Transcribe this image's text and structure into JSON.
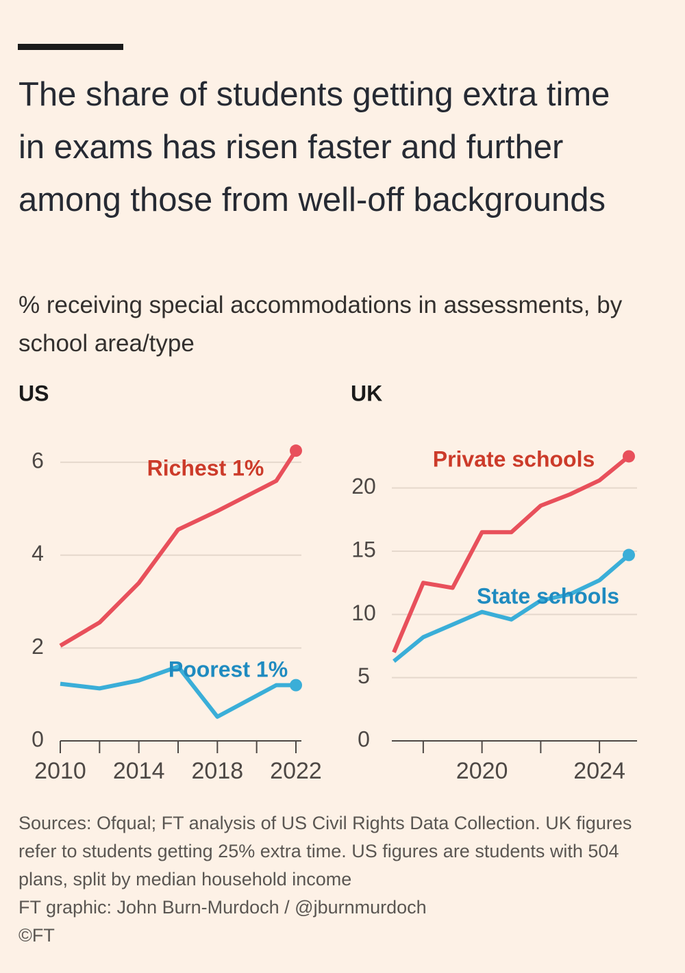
{
  "title": "The share of students getting extra time in exams has risen faster and further among those from well-off backgrounds",
  "subtitle": "% receiving special accommodations in assessments, by school area/type",
  "chart_data": [
    {
      "type": "line",
      "title": "US",
      "x": [
        2010,
        2012,
        2014,
        2016,
        2018,
        2021,
        2022
      ],
      "xlim": [
        2010,
        2022
      ],
      "xticks": [
        2010,
        2014,
        2018,
        2022
      ],
      "xminor_ticks": [
        2012,
        2016,
        2020
      ],
      "ylim": [
        0,
        6.4
      ],
      "yticks": [
        0,
        2,
        4,
        6
      ],
      "grid": true,
      "series": [
        {
          "name": "Richest 1%",
          "color": "#e8505b",
          "label_color": "#cc3b2a",
          "values": [
            2.05,
            2.55,
            3.4,
            4.55,
            4.95,
            5.6,
            6.25
          ]
        },
        {
          "name": "Poorest 1%",
          "color": "#3aaed8",
          "label_color": "#1f8bc0",
          "values": [
            1.23,
            1.13,
            1.3,
            1.6,
            0.52,
            1.2,
            1.2
          ]
        }
      ]
    },
    {
      "type": "line",
      "title": "UK",
      "x": [
        2017,
        2018,
        2019,
        2020,
        2021,
        2022,
        2023,
        2024,
        2025
      ],
      "xlim": [
        2017,
        2025
      ],
      "xticks": [
        2020,
        2024
      ],
      "xminor_ticks": [
        2018,
        2022
      ],
      "ylim": [
        0,
        23.5
      ],
      "yticks": [
        0,
        5,
        10,
        15,
        20
      ],
      "grid": true,
      "series": [
        {
          "name": "Private schools",
          "color": "#e8505b",
          "label_color": "#cc3b2a",
          "values": [
            7.0,
            12.5,
            12.1,
            16.5,
            16.5,
            18.6,
            19.5,
            20.6,
            22.5
          ]
        },
        {
          "name": "State schools",
          "color": "#3aaed8",
          "label_color": "#1f8bc0",
          "values": [
            6.3,
            8.2,
            9.2,
            10.2,
            9.6,
            11.1,
            11.6,
            12.7,
            14.7
          ]
        }
      ]
    }
  ],
  "footer": {
    "sources": "Sources: Ofqual; FT analysis of US Civil Rights Data Collection. UK figures refer to students getting 25% extra time. US figures are students with 504 plans, split by median household income",
    "credit": "FT graphic: John Burn-Murdoch / @jburnmurdoch",
    "copyright": "©FT"
  }
}
